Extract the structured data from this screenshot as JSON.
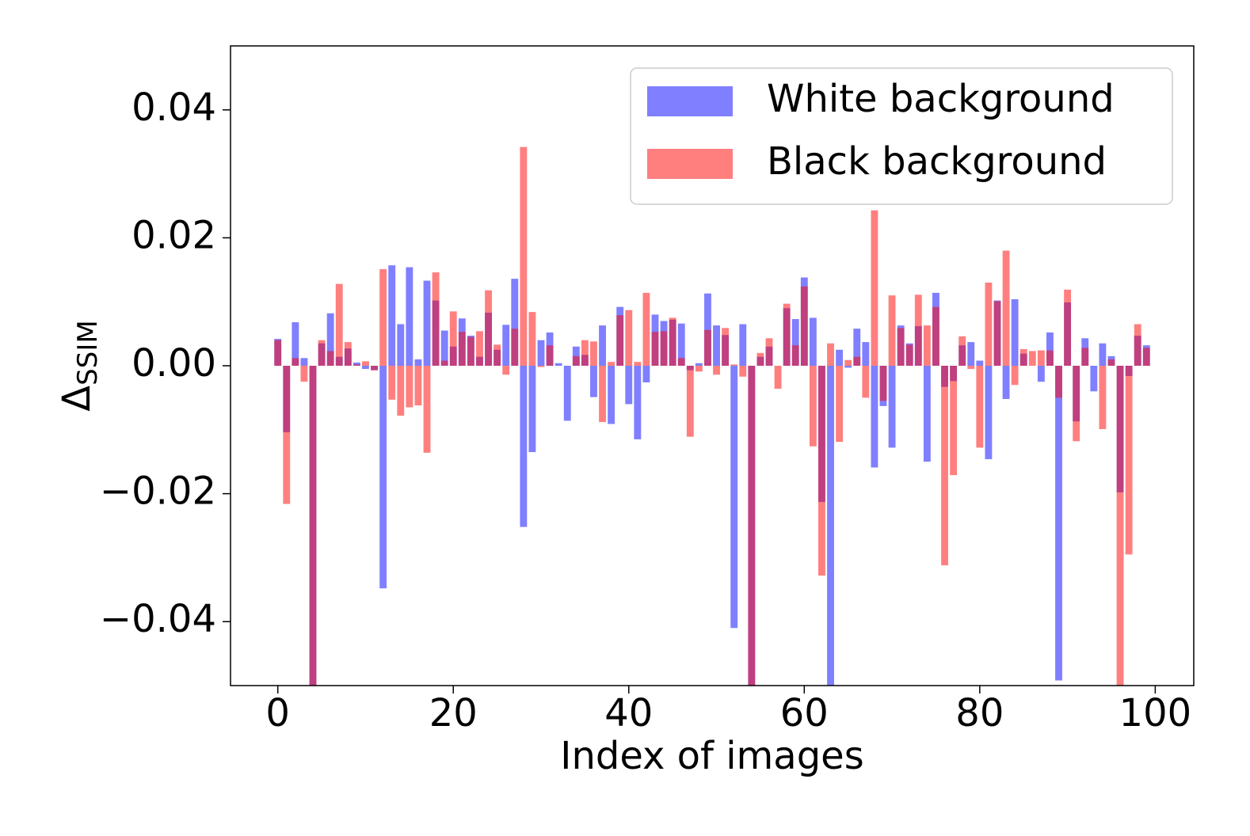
{
  "chart_data": {
    "type": "bar",
    "xlabel": "Index of images",
    "ylabel": "Δ",
    "ylabel_subscript": "SSIM",
    "xlim": [
      -5.39,
      104.39
    ],
    "ylim": [
      -0.05,
      0.05
    ],
    "xticks": [
      0,
      20,
      40,
      60,
      80,
      100
    ],
    "yticks": [
      {
        "value": -0.04,
        "label": "−0.04"
      },
      {
        "value": -0.02,
        "label": "−0.02"
      },
      {
        "value": 0,
        "label": "0.00"
      },
      {
        "value": 0.02,
        "label": "0.02"
      },
      {
        "value": 0.04,
        "label": "0.04"
      }
    ],
    "legend": "upper right",
    "x": [
      0,
      1,
      2,
      3,
      4,
      5,
      6,
      7,
      8,
      9,
      10,
      11,
      12,
      13,
      14,
      15,
      16,
      17,
      18,
      19,
      20,
      21,
      22,
      23,
      24,
      25,
      26,
      27,
      28,
      29,
      30,
      31,
      32,
      33,
      34,
      35,
      36,
      37,
      38,
      39,
      40,
      41,
      42,
      43,
      44,
      45,
      46,
      47,
      48,
      49,
      50,
      51,
      52,
      53,
      54,
      55,
      56,
      57,
      58,
      59,
      60,
      61,
      62,
      63,
      64,
      65,
      66,
      67,
      68,
      69,
      70,
      71,
      72,
      73,
      74,
      75,
      76,
      77,
      78,
      79,
      80,
      81,
      82,
      83,
      84,
      85,
      86,
      87,
      88,
      89,
      90,
      91,
      92,
      93,
      94,
      95,
      96,
      97,
      98,
      99
    ],
    "series": [
      {
        "name": "White background",
        "color": "#0000ff",
        "values": [
          0.0042,
          -0.0104,
          0.0068,
          0.0012,
          -0.06,
          0.0035,
          0.0082,
          0.0014,
          0.0027,
          0.0005,
          -0.0005,
          -0.0007,
          -0.0348,
          0.0157,
          0.0065,
          0.0154,
          0.001,
          0.0133,
          0.0102,
          0.0055,
          0.003,
          0.0074,
          0.0047,
          0.0014,
          0.0083,
          0.0025,
          0.0064,
          0.0136,
          -0.0252,
          -0.0135,
          0.004,
          0.0052,
          0.0004,
          -0.0086,
          0.003,
          0.0017,
          -0.0049,
          0.0063,
          -0.0091,
          0.0092,
          -0.006,
          -0.0115,
          -0.0026,
          0.008,
          0.007,
          0.0072,
          0.0066,
          -0.0007,
          0.0004,
          0.0113,
          0.0063,
          0.0048,
          -0.041,
          0.0065,
          -0.06,
          0.0014,
          0.003,
          0,
          0.009,
          0.0073,
          0.0138,
          0.0075,
          -0.0213,
          -0.06,
          0.0025,
          -0.0003,
          0.0058,
          0.0037,
          -0.0159,
          -0.0063,
          -0.0128,
          0.0063,
          0.0035,
          0.0062,
          -0.015,
          0.0114,
          -0.0033,
          -0.0024,
          0.0032,
          0.0037,
          0.0008,
          -0.0146,
          0.0102,
          -0.0052,
          0.0104,
          0.0019,
          0,
          -0.0025,
          0.0052,
          -0.0492,
          0.0099,
          -0.0087,
          0.0043,
          -0.004,
          0.0035,
          0.0015,
          -0.0198,
          -0.0016,
          0.0047,
          0.0032
        ]
      },
      {
        "name": "Black background",
        "color": "#ff0000",
        "values": [
          0.004,
          -0.0216,
          0.0012,
          -0.0025,
          -0.06,
          0.004,
          0.0023,
          0.0128,
          0.0037,
          0.0002,
          0.0007,
          -0.0007,
          0.0151,
          -0.0053,
          -0.0078,
          -0.0065,
          -0.0062,
          -0.0136,
          0.0146,
          0.0008,
          0.0085,
          0.0053,
          0.0045,
          0.0054,
          0.0118,
          0.0033,
          -0.0014,
          0.0058,
          0.0342,
          0.0084,
          -0.0002,
          0.0032,
          0,
          0,
          0.0015,
          0.004,
          0.0038,
          -0.0088,
          0.0006,
          0.0079,
          0.0087,
          0.0006,
          0.0114,
          0.0053,
          0.0054,
          0.0075,
          0.0012,
          -0.0111,
          -0.0009,
          0.0056,
          -0.0014,
          0.0059,
          0.0002,
          -0.0017,
          -0.06,
          0.002,
          0.0043,
          -0.0036,
          0.0097,
          0.0032,
          0.0124,
          -0.0126,
          -0.0328,
          0.0035,
          -0.0119,
          0.0009,
          0.0014,
          -0.005,
          0.0243,
          -0.0055,
          0.011,
          0.0059,
          0.0033,
          0.0111,
          0.0063,
          0.0092,
          -0.0312,
          -0.0171,
          0.0046,
          -0.0005,
          -0.0128,
          0.013,
          0.0101,
          0.018,
          -0.003,
          0.0026,
          0.0023,
          0.0024,
          0.0024,
          -0.005,
          0.0119,
          -0.0118,
          0.0028,
          0,
          -0.0099,
          0.001,
          -0.06,
          -0.0295,
          0.0065,
          0.0028
        ]
      }
    ]
  }
}
